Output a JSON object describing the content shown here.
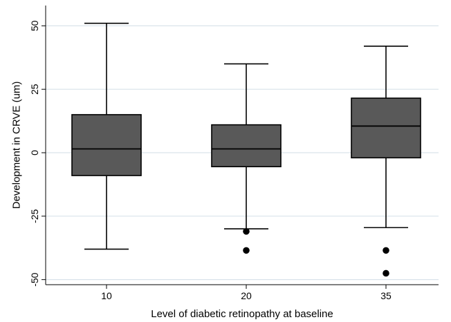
{
  "chart_data": {
    "type": "box",
    "title": "",
    "xlabel": "Level of diabetic retinopathy at baseline",
    "ylabel": "Development in CRVE (um)",
    "ylim": [
      -52,
      58
    ],
    "yticks": [
      -50,
      -25,
      0,
      25,
      50
    ],
    "grid": true,
    "categories": [
      "10",
      "20",
      "35"
    ],
    "boxes": [
      {
        "category": "10",
        "whisker_low": -38,
        "q1": -9,
        "median": 1.5,
        "q3": 15,
        "whisker_high": 51,
        "outliers": []
      },
      {
        "category": "20",
        "whisker_low": -30,
        "q1": -5.5,
        "median": 1.5,
        "q3": 11,
        "whisker_high": 35,
        "outliers": [
          -31,
          -38.5
        ]
      },
      {
        "category": "35",
        "whisker_low": -29.5,
        "q1": -2,
        "median": 10.5,
        "q3": 21.5,
        "whisker_high": 42,
        "outliers": [
          -38.5,
          -47.5
        ]
      }
    ],
    "colors": {
      "box_fill": "#595959",
      "line": "#000000",
      "grid": "#d9e3ea",
      "outlier": "#000000"
    }
  }
}
